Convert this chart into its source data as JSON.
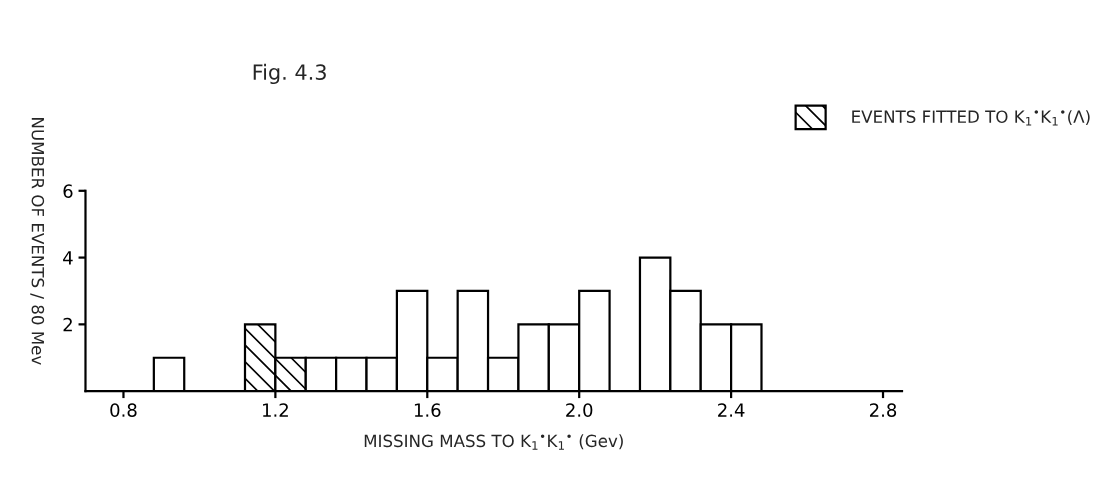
{
  "chart_data": {
    "type": "histogram",
    "title": "Fig. 4.3",
    "xlabel": "MISSING MASS TO K$_{1}$$^{•}$K$_{1}$$^{•}$ (Gev)",
    "ylabel": "NUMBER OF EVENTS / 80 Mev",
    "bins": [
      0.8,
      0.88,
      0.96,
      1.04,
      1.12,
      1.2,
      1.28,
      1.36,
      1.44,
      1.52,
      1.6,
      1.68,
      1.76,
      1.84,
      1.92,
      2.0,
      2.08,
      2.16,
      2.24,
      2.32,
      2.4,
      2.48,
      2.56,
      2.64,
      2.72,
      2.8
    ],
    "series": [
      {
        "name": "EVENTS FITTED TO K$_{1}$$^{•}$K$_{1}$$^{•}$(Λ)",
        "color": "#000000",
        "values": [
          0,
          0,
          0,
          0,
          2,
          1,
          0,
          0,
          0,
          0,
          0,
          0,
          0,
          0,
          0,
          0,
          0,
          0,
          0,
          0,
          0,
          0,
          0,
          0,
          0
        ]
      },
      {
        "color": "#ffffff",
        "values": [
          0,
          1,
          0,
          0,
          0,
          0,
          1,
          1,
          1,
          3,
          1,
          3,
          1,
          2,
          2,
          3,
          0,
          4,
          3,
          2,
          2,
          0,
          0,
          0,
          0
        ]
      }
    ],
    "xlim": [
      0.7,
      2.85
    ],
    "ylim": [
      0,
      6
    ],
    "xticks": [
      0.8,
      1.2,
      1.6,
      {
        "value": 2.0,
        "label": "2.0"
      },
      2.4,
      2.8
    ],
    "yticks": [
      2,
      4,
      6
    ],
    "legend": "top right",
    "grid": false
  }
}
